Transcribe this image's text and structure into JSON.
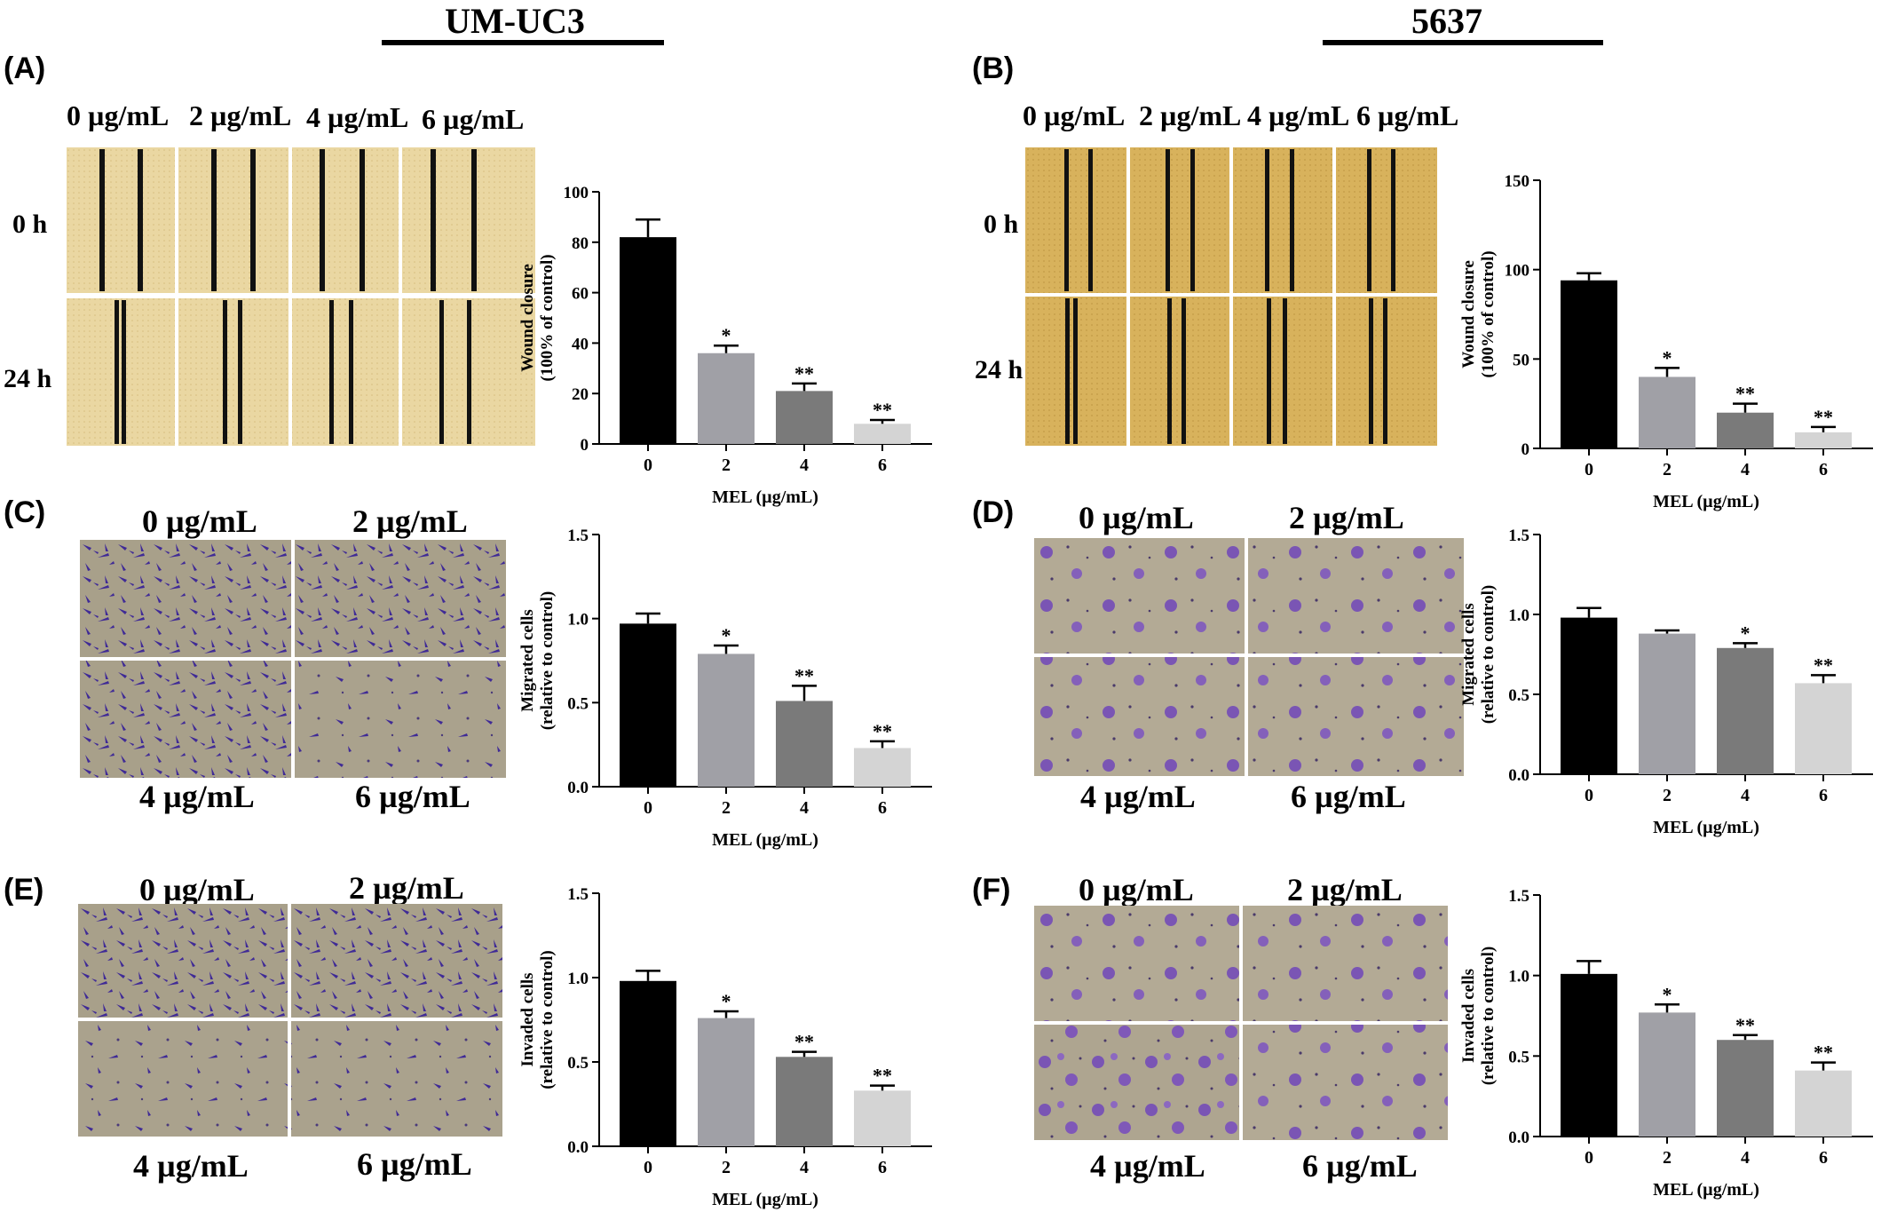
{
  "header": {
    "left_title": "UM-UC3",
    "right_title": "5637"
  },
  "panels": {
    "A": {
      "label": "(A)",
      "concs": [
        "0 µg/mL",
        "2 µg/mL",
        "4 µg/mL",
        "6 µg/mL"
      ],
      "rows": [
        "0 h",
        "24 h"
      ]
    },
    "B": {
      "label": "(B)",
      "concs": [
        "0 µg/mL",
        "2 µg/mL",
        "4 µg/mL",
        "6 µg/mL"
      ],
      "rows": [
        "0 h",
        "24 h"
      ]
    },
    "C": {
      "label": "(C)",
      "concs": [
        "0 µg/mL",
        "2 µg/mL",
        "4 µg/mL",
        "6 µg/mL"
      ]
    },
    "D": {
      "label": "(D)",
      "concs": [
        "0 µg/mL",
        "2 µg/mL",
        "4 µg/mL",
        "6 µg/mL"
      ]
    },
    "E": {
      "label": "(E)",
      "concs": [
        "0 µg/mL",
        "2 µg/mL",
        "4 µg/mL",
        "6 µg/mL"
      ]
    },
    "F": {
      "label": "(F)",
      "concs": [
        "0 µg/mL",
        "2 µg/mL",
        "4 µg/mL",
        "6 µg/mL"
      ]
    }
  },
  "colors": {
    "wound_left": "#ecd9a6",
    "wound_right": "#d8b25a",
    "transwell_bg": "#a39a84",
    "stain": "#4a2fa0",
    "bar_colors": [
      "#000000",
      "#a0a0a6",
      "#7a7a7a",
      "#d4d4d4"
    ]
  },
  "chart_data": [
    {
      "type": "bar",
      "panel": "A",
      "categories": [
        "0",
        "2",
        "4",
        "6"
      ],
      "values": [
        82,
        36,
        21,
        8
      ],
      "errors": [
        7,
        3,
        3,
        1.5
      ],
      "annotations": [
        "",
        "*",
        "**",
        "**"
      ],
      "xlabel": "MEL (µg/mL)",
      "ylabel": "Wound closure",
      "ylabel2": "(100% of control)",
      "ylim": [
        0,
        100
      ],
      "yticks": [
        "0",
        "20",
        "40",
        "60",
        "80",
        "100"
      ]
    },
    {
      "type": "bar",
      "panel": "B",
      "categories": [
        "0",
        "2",
        "4",
        "6"
      ],
      "values": [
        94,
        40,
        20,
        9
      ],
      "errors": [
        4,
        5,
        5,
        3
      ],
      "annotations": [
        "",
        "*",
        "**",
        "**"
      ],
      "xlabel": "MEL (µg/mL)",
      "ylabel": "Wound closure",
      "ylabel2": "(100% of control)",
      "ylim": [
        0,
        150
      ],
      "yticks": [
        "0",
        "50",
        "100",
        "150"
      ]
    },
    {
      "type": "bar",
      "panel": "C",
      "categories": [
        "0",
        "2",
        "4",
        "6"
      ],
      "values": [
        0.97,
        0.79,
        0.51,
        0.23
      ],
      "errors": [
        0.06,
        0.05,
        0.09,
        0.04
      ],
      "annotations": [
        "",
        "*",
        "**",
        "**"
      ],
      "xlabel": "MEL (µg/mL)",
      "ylabel": "Migrated cells",
      "ylabel2": "(relative to control)",
      "ylim": [
        0,
        1.5
      ],
      "yticks": [
        "0.0",
        "0.5",
        "1.0",
        "1.5"
      ]
    },
    {
      "type": "bar",
      "panel": "D",
      "categories": [
        "0",
        "2",
        "4",
        "6"
      ],
      "values": [
        0.98,
        0.88,
        0.79,
        0.57
      ],
      "errors": [
        0.06,
        0.02,
        0.03,
        0.05
      ],
      "annotations": [
        "",
        "",
        "*",
        "**"
      ],
      "xlabel": "MEL (µg/mL)",
      "ylabel": "Migrated cells",
      "ylabel2": "(relative to control)",
      "ylim": [
        0,
        1.5
      ],
      "yticks": [
        "0.0",
        "0.5",
        "1.0",
        "1.5"
      ]
    },
    {
      "type": "bar",
      "panel": "E",
      "categories": [
        "0",
        "2",
        "4",
        "6"
      ],
      "values": [
        0.98,
        0.76,
        0.53,
        0.33
      ],
      "errors": [
        0.06,
        0.04,
        0.03,
        0.03
      ],
      "annotations": [
        "",
        "*",
        "**",
        "**"
      ],
      "xlabel": "MEL (µg/mL)",
      "ylabel": "Invaded cells",
      "ylabel2": "(relative to control)",
      "ylim": [
        0,
        1.5
      ],
      "yticks": [
        "0.0",
        "0.5",
        "1.0",
        "1.5"
      ]
    },
    {
      "type": "bar",
      "panel": "F",
      "categories": [
        "0",
        "2",
        "4",
        "6"
      ],
      "values": [
        1.01,
        0.77,
        0.6,
        0.41
      ],
      "errors": [
        0.08,
        0.05,
        0.03,
        0.05
      ],
      "annotations": [
        "",
        "*",
        "**",
        "**"
      ],
      "xlabel": "MEL (µg/mL)",
      "ylabel": "Invaded cells",
      "ylabel2": "(relative to control)",
      "ylim": [
        0,
        1.5
      ],
      "yticks": [
        "0.0",
        "0.5",
        "1.0",
        "1.5"
      ]
    }
  ]
}
